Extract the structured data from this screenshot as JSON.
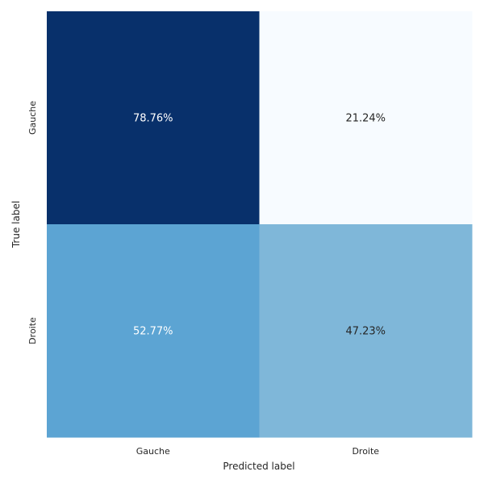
{
  "chart_data": {
    "type": "heatmap",
    "title": "",
    "xlabel": "Predicted label",
    "ylabel": "True label",
    "x_categories": [
      "Gauche",
      "Droite"
    ],
    "y_categories": [
      "Gauche",
      "Droite"
    ],
    "values": [
      [
        78.76,
        21.24
      ],
      [
        52.77,
        47.23
      ]
    ],
    "value_labels": [
      [
        "78.76%",
        "21.24%"
      ],
      [
        "52.77%",
        "47.23%"
      ]
    ],
    "cell_colors": [
      [
        "#08306b",
        "#f7fbff"
      ],
      [
        "#5ca4d3",
        "#7fb7d9"
      ]
    ],
    "text_colors": [
      [
        "#ffffff",
        "#262626"
      ],
      [
        "#ffffff",
        "#262626"
      ]
    ],
    "colormap": "Blues",
    "grid": false,
    "colorbar": false
  }
}
